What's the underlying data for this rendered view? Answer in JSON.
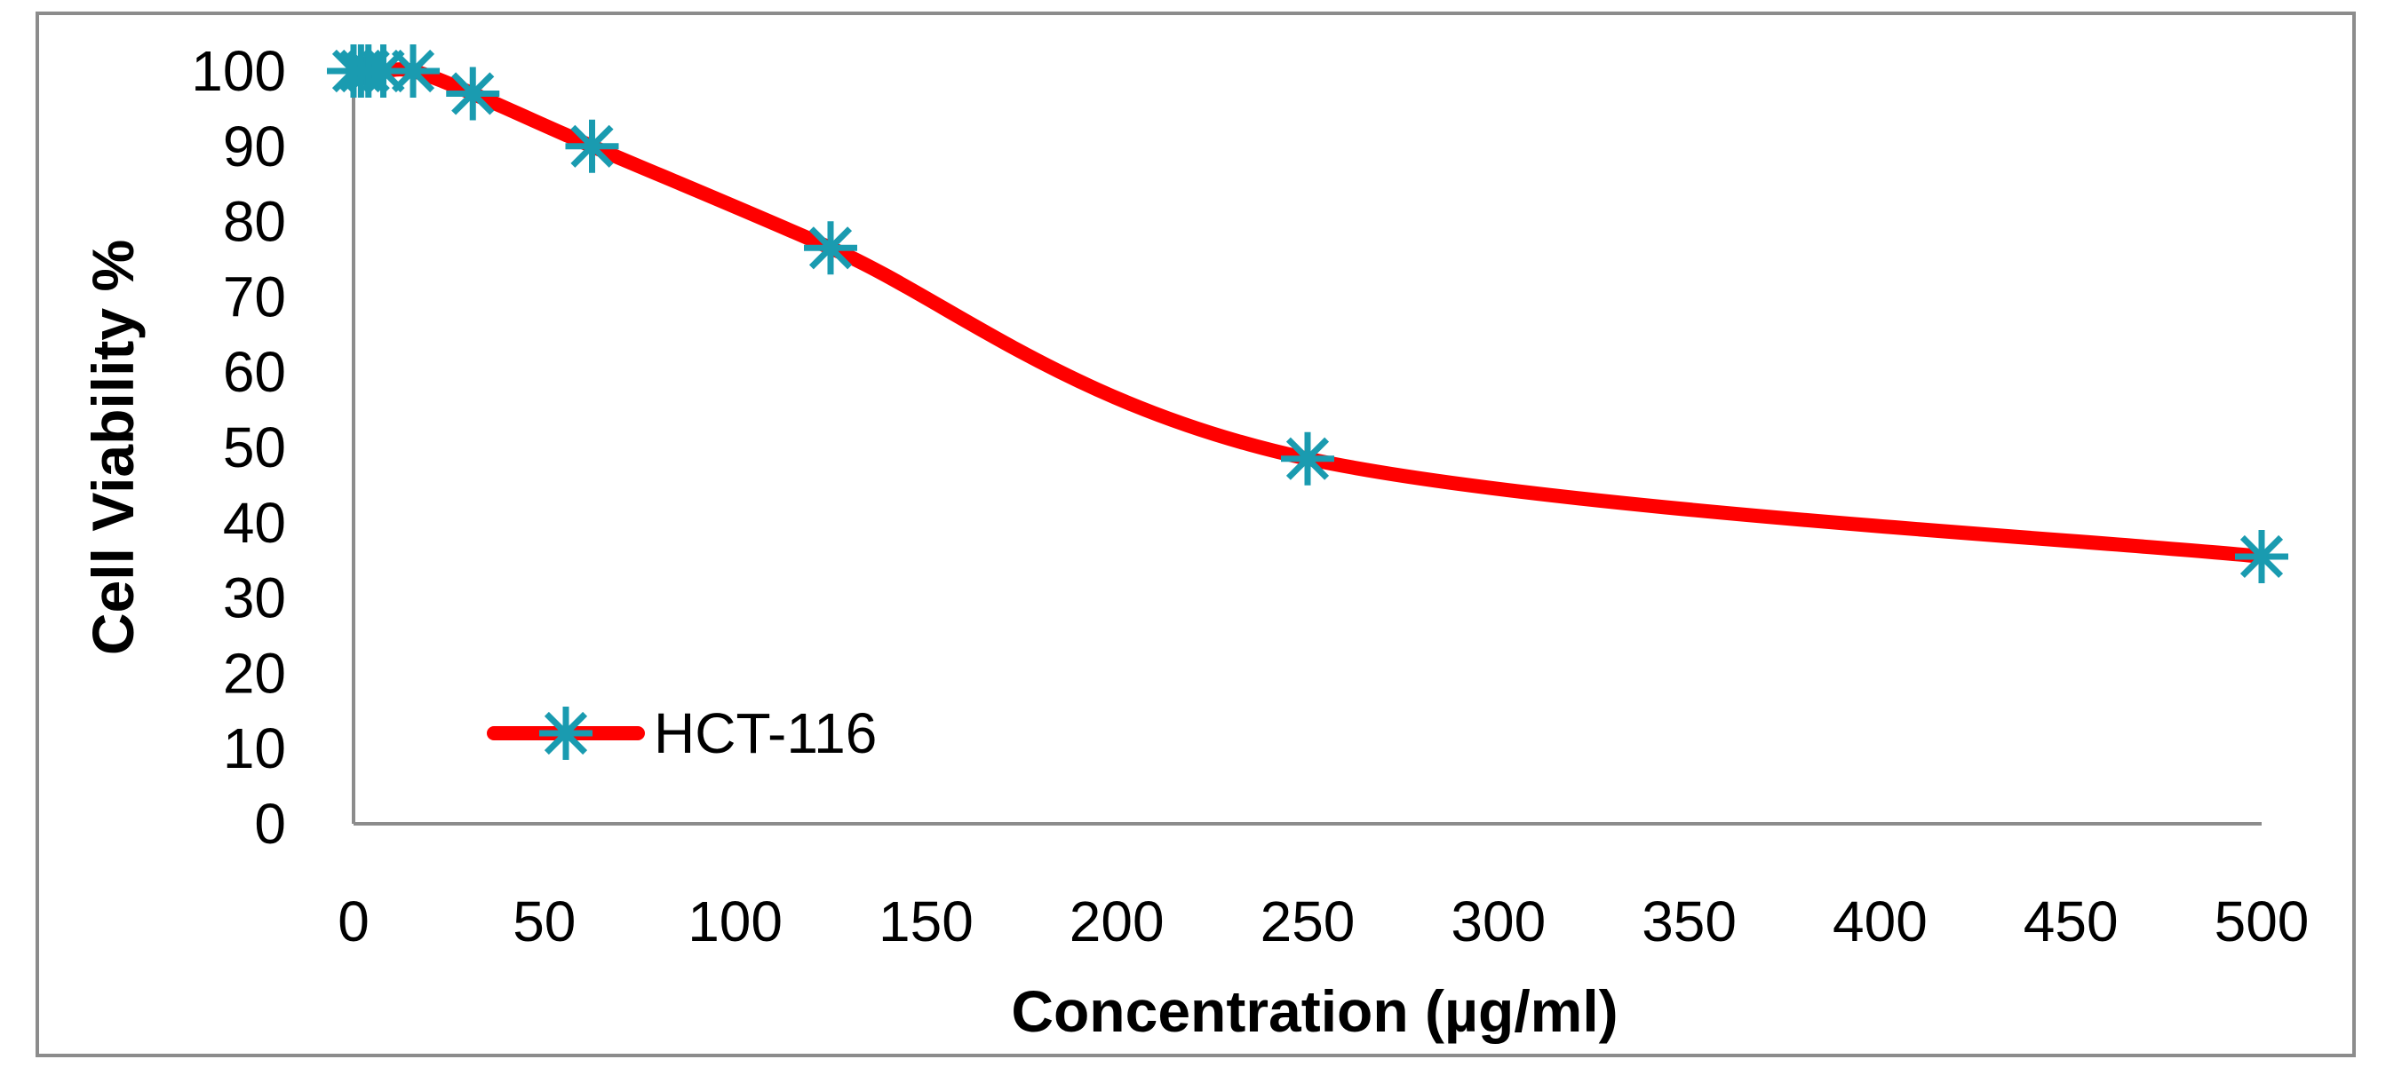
{
  "chart_data": {
    "type": "line",
    "title": "",
    "xlabel": "Concentration (µg/ml)",
    "ylabel": "Cell  Viability  %",
    "xlim": [
      0,
      500
    ],
    "ylim": [
      0,
      100
    ],
    "x_ticks": [
      0,
      50,
      100,
      150,
      200,
      250,
      300,
      350,
      400,
      450,
      500
    ],
    "y_ticks": [
      0,
      10,
      20,
      30,
      40,
      50,
      60,
      70,
      80,
      90,
      100
    ],
    "grid": false,
    "smooth": true,
    "legend_position": "bottom-left",
    "series": [
      {
        "name": "HCT-116",
        "line_color": "#ff0000",
        "marker_color": "#1a9bb0",
        "marker": "asterisk",
        "x": [
          0,
          1.95,
          3.9,
          7.8,
          15.6,
          31.25,
          62.5,
          125,
          250,
          500
        ],
        "y": [
          100,
          100,
          100,
          100,
          100,
          97,
          90,
          76.5,
          48.5,
          35.5
        ]
      }
    ]
  }
}
